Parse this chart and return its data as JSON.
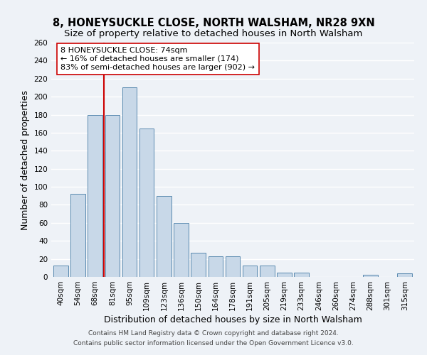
{
  "title": "8, HONEYSUCKLE CLOSE, NORTH WALSHAM, NR28 9XN",
  "subtitle": "Size of property relative to detached houses in North Walsham",
  "xlabel": "Distribution of detached houses by size in North Walsham",
  "ylabel": "Number of detached properties",
  "bin_labels": [
    "40sqm",
    "54sqm",
    "68sqm",
    "81sqm",
    "95sqm",
    "109sqm",
    "123sqm",
    "136sqm",
    "150sqm",
    "164sqm",
    "178sqm",
    "191sqm",
    "205sqm",
    "219sqm",
    "233sqm",
    "246sqm",
    "260sqm",
    "274sqm",
    "288sqm",
    "301sqm",
    "315sqm"
  ],
  "bar_heights": [
    13,
    92,
    180,
    180,
    210,
    165,
    90,
    60,
    27,
    23,
    23,
    13,
    13,
    5,
    5,
    0,
    0,
    0,
    2,
    0,
    4
  ],
  "bar_color": "#c8d8e8",
  "bar_edge_color": "#5a8ab0",
  "vline_x": 2.5,
  "vline_color": "#cc0000",
  "annotation_box_text": "8 HONEYSUCKLE CLOSE: 74sqm\n← 16% of detached houses are smaller (174)\n83% of semi-detached houses are larger (902) →",
  "annotation_box_edge_color": "#cc0000",
  "annotation_box_bg": "#ffffff",
  "ylim": [
    0,
    260
  ],
  "yticks": [
    0,
    20,
    40,
    60,
    80,
    100,
    120,
    140,
    160,
    180,
    200,
    220,
    240,
    260
  ],
  "footer_line1": "Contains HM Land Registry data © Crown copyright and database right 2024.",
  "footer_line2": "Contains public sector information licensed under the Open Government Licence v3.0.",
  "bg_color": "#eef2f7",
  "grid_color": "#ffffff",
  "title_fontsize": 10.5,
  "subtitle_fontsize": 9.5,
  "axis_label_fontsize": 9,
  "tick_fontsize": 7.5,
  "footer_fontsize": 6.5
}
